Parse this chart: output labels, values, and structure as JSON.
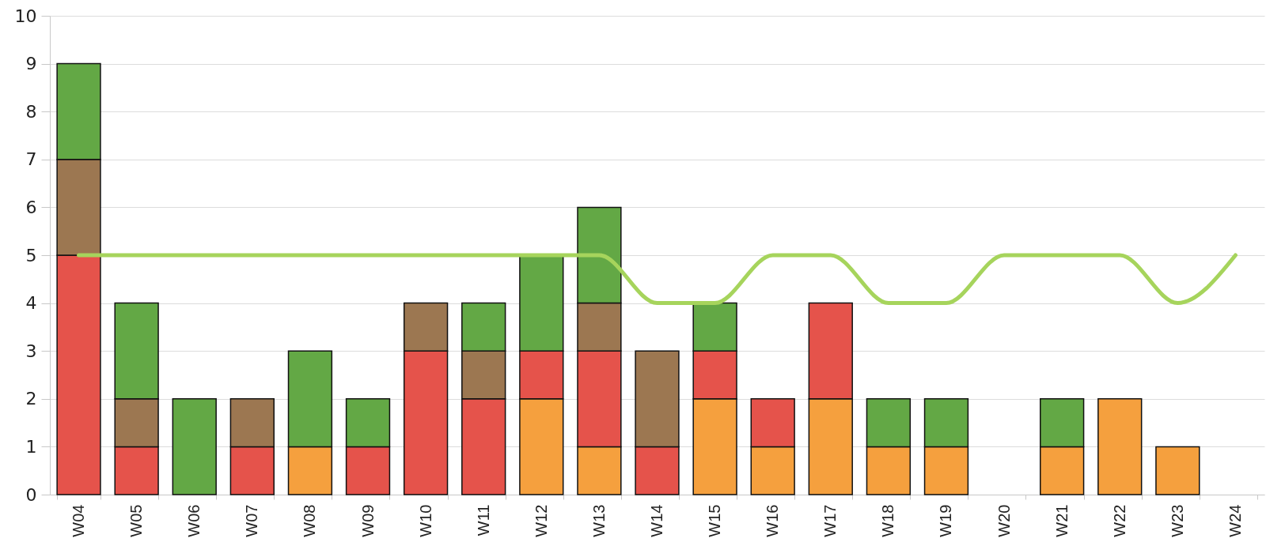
{
  "chart_data": {
    "type": "bar",
    "stacked": true,
    "categories": [
      "W04",
      "W05",
      "W06",
      "W07",
      "W08",
      "W09",
      "W10",
      "W11",
      "W12",
      "W13",
      "W14",
      "W15",
      "W16",
      "W17",
      "W18",
      "W19",
      "W20",
      "W21",
      "W22",
      "W23",
      "W24"
    ],
    "series": [
      {
        "color": "#f5a03e",
        "values": [
          null,
          null,
          null,
          null,
          1,
          null,
          null,
          null,
          2,
          1,
          null,
          2,
          1,
          2,
          1,
          1,
          null,
          1,
          2,
          1,
          null
        ]
      },
      {
        "color": "#e5534b",
        "values": [
          5,
          1,
          null,
          1,
          null,
          1,
          3,
          2,
          1,
          2,
          1,
          1,
          1,
          2,
          null,
          null,
          null,
          null,
          null,
          null,
          null
        ]
      },
      {
        "color": "#9c7751",
        "values": [
          2,
          1,
          null,
          1,
          null,
          null,
          1,
          1,
          null,
          1,
          2,
          null,
          null,
          null,
          null,
          null,
          null,
          null,
          null,
          null,
          null
        ]
      },
      {
        "color": "#63a845",
        "values": [
          2,
          2,
          2,
          null,
          2,
          1,
          null,
          1,
          2,
          2,
          null,
          1,
          null,
          null,
          1,
          1,
          null,
          1,
          null,
          null,
          null
        ]
      },
      {
        "type": "line",
        "color": "#a6d45c",
        "values": [
          5,
          5,
          5,
          5,
          5,
          5,
          5,
          5,
          5,
          5,
          4,
          4,
          5,
          5,
          4,
          4,
          5,
          5,
          5,
          4,
          5
        ]
      }
    ],
    "ylim": [
      0,
      10
    ],
    "yticks": [
      0,
      1,
      2,
      3,
      4,
      5,
      6,
      7,
      8,
      9,
      10
    ],
    "grid": "y"
  }
}
